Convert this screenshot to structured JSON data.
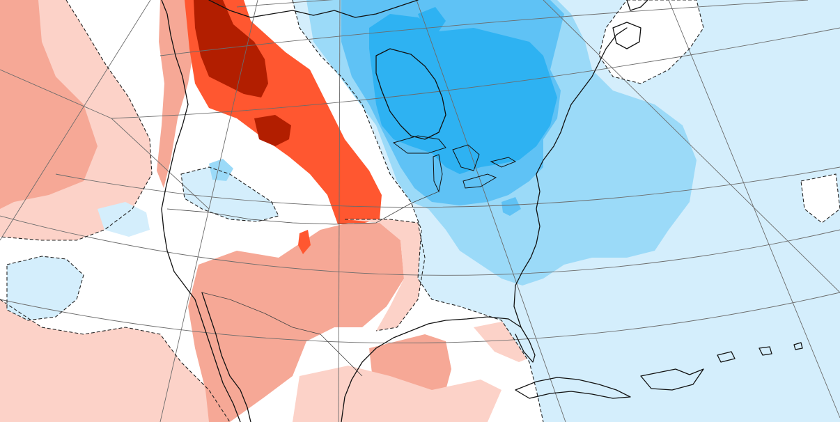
{
  "map": {
    "type": "temperature-anomaly-map",
    "region": "North America",
    "colors": {
      "warm_strong": "#b21e00",
      "warm_high": "#ff5730",
      "warm_mid": "#f6a896",
      "warm_low": "#fcd2c8",
      "neutral": "#ffffff",
      "cool_low": "#d4eefc",
      "cool_mid": "#9bdaf8",
      "cool_high": "#5fc2f5",
      "cool_strong": "#2eb2f2",
      "coastline": "#111111",
      "graticule": "#6b6b6b",
      "zero_contour": "#222222"
    },
    "legend_visible": false,
    "title_visible": false,
    "graticule": true,
    "contour_style": "dashed"
  }
}
